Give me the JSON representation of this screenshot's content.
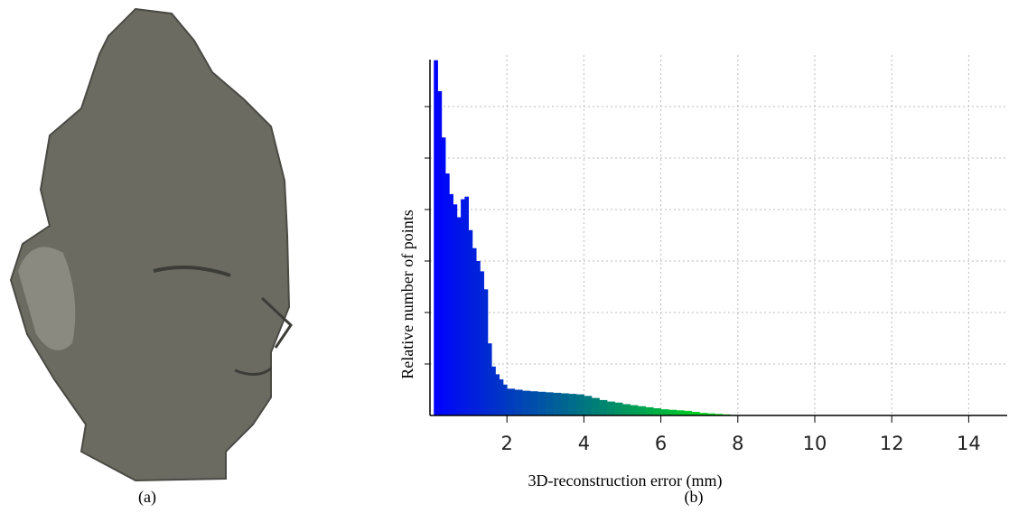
{
  "panels": {
    "left_caption": "(a)",
    "right_caption": "(b)"
  },
  "chart_data": {
    "type": "histogram",
    "xlabel": "3D-reconstruction error (mm)",
    "ylabel": "Relative number of points",
    "bins": [
      0.1,
      0.2,
      0.3,
      0.4,
      0.5,
      0.6,
      0.7,
      0.8,
      0.9,
      1.0,
      1.1,
      1.2,
      1.3,
      1.4,
      1.5,
      1.6,
      1.7,
      1.8,
      1.9,
      2.0,
      2.2,
      2.4,
      2.6,
      2.8,
      3.0,
      3.2,
      3.4,
      3.6,
      3.8,
      4.0,
      4.2,
      4.4,
      4.6,
      4.8,
      5.0,
      5.2,
      5.4,
      5.6,
      5.8,
      6.0,
      6.2,
      6.4,
      6.6,
      6.8,
      7.0,
      7.2,
      7.4,
      7.6,
      7.8,
      8.0
    ],
    "values": [
      6.9,
      6.3,
      5.4,
      4.7,
      4.3,
      4.1,
      3.85,
      4.2,
      4.25,
      3.6,
      3.25,
      3.0,
      2.8,
      2.45,
      1.4,
      0.95,
      0.8,
      0.7,
      0.6,
      0.52,
      0.5,
      0.48,
      0.47,
      0.46,
      0.45,
      0.44,
      0.43,
      0.42,
      0.41,
      0.38,
      0.34,
      0.3,
      0.27,
      0.25,
      0.22,
      0.2,
      0.18,
      0.16,
      0.14,
      0.12,
      0.11,
      0.1,
      0.09,
      0.07,
      0.05,
      0.04,
      0.03,
      0.02,
      0.01
    ],
    "colors": [
      "#0000ff",
      "#00ee00"
    ],
    "xlim": [
      0,
      15
    ],
    "ylim": [
      0,
      7
    ],
    "xticks": [
      2,
      4,
      6,
      8,
      10,
      12,
      14
    ],
    "yticks": [
      1,
      2,
      3,
      4,
      5,
      6
    ],
    "grid": true
  }
}
